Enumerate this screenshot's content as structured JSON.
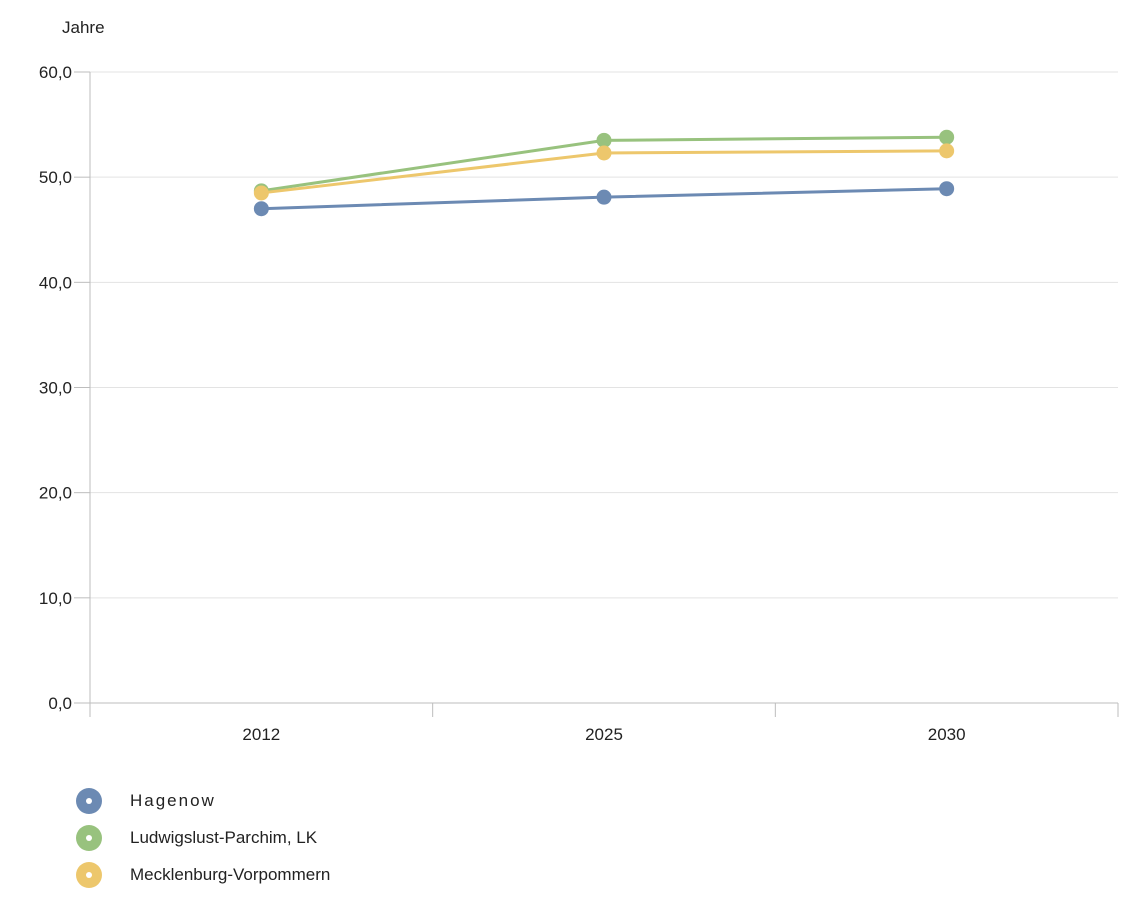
{
  "chart_data": {
    "type": "line",
    "ylabel": "Jahre",
    "categories": [
      "2012",
      "2025",
      "2030"
    ],
    "ylim": [
      0,
      60
    ],
    "yticks": [
      "0,0",
      "10,0",
      "20,0",
      "30,0",
      "40,0",
      "50,0",
      "60,0"
    ],
    "grid": true,
    "legend": "bottom-left",
    "series": [
      {
        "name": "Hagenow",
        "values": [
          47.0,
          48.1,
          48.9
        ],
        "color": "#6c8ab3"
      },
      {
        "name": "Ludwigslust-Parchim, LK",
        "values": [
          48.7,
          53.5,
          53.8
        ],
        "color": "#98c27e"
      },
      {
        "name": "Mecklenburg-Vorpommern",
        "values": [
          48.5,
          52.3,
          52.5
        ],
        "color": "#edc76c"
      }
    ]
  }
}
